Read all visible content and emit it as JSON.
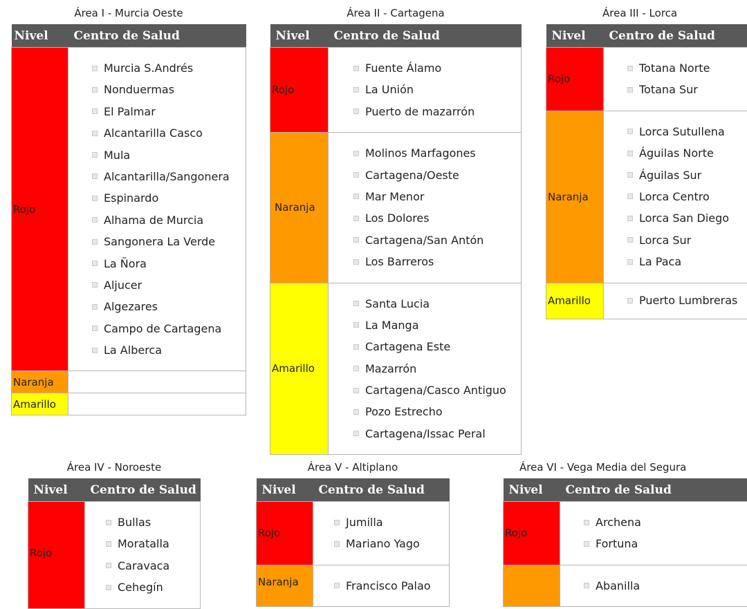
{
  "header": {
    "nivel": "Nivel",
    "centro": "Centro de Salud"
  },
  "areas": [
    {
      "title": "Área I - Murcia Oeste",
      "rows": [
        {
          "level": "Rojo",
          "color": "#ff0000",
          "centers": [
            "Murcia S.Andrés",
            "Nonduermas",
            "El Palmar",
            "Alcantarilla Casco",
            "Mula",
            "Alcantarilla/Sangonera",
            "Espinardo",
            "Alhama de Murcia",
            "Sangonera La Verde",
            "La Ñora",
            "Aljucer",
            "Algezares",
            "Campo de Cartagena",
            "La Alberca"
          ]
        },
        {
          "level": "Naranja",
          "color": "#ff9900",
          "centers": []
        },
        {
          "level": "Amarillo",
          "color": "#ffff00",
          "centers": []
        }
      ]
    },
    {
      "title": "Área II - Cartagena",
      "rows": [
        {
          "level": "Rojo",
          "color": "#ff0000",
          "centers": [
            "Fuente Álamo",
            "La Unión",
            "Puerto de mazarrón"
          ]
        },
        {
          "level": "Naranja",
          "color": "#ff9900",
          "centers": [
            "Molinos Marfagones",
            "Cartagena/Oeste",
            "Mar Menor",
            "Los Dolores",
            "Cartagena/San Antón",
            "Los Barreros"
          ]
        },
        {
          "level": "Amarillo",
          "color": "#ffff00",
          "centers": [
            "Santa Lucia",
            "La Manga",
            "Cartagena Este",
            "Mazarrón",
            "Cartagena/Casco Antiguo",
            "Pozo Estrecho",
            "Cartagena/Issac Peral"
          ]
        }
      ]
    },
    {
      "title": "Área III - Lorca",
      "rows": [
        {
          "level": "Rojo",
          "color": "#ff0000",
          "centers": [
            "Totana Norte",
            "Totana Sur"
          ]
        },
        {
          "level": "Naranja",
          "color": "#ff9900",
          "centers": [
            "Lorca Sutullena",
            "Águilas Norte",
            "Águilas Sur",
            "Lorca Centro",
            "Lorca San Diego",
            "Lorca Sur",
            "La Paca"
          ]
        },
        {
          "level": "Amarillo",
          "color": "#ffff00",
          "centers": [
            "Puerto Lumbreras"
          ]
        }
      ]
    },
    {
      "title": "Área IV - Noroeste",
      "rows": [
        {
          "level": "Rojo",
          "color": "#ff0000",
          "centers": [
            "Bullas",
            "Moratalla",
            "Caravaca",
            "Cehegín"
          ]
        }
      ]
    },
    {
      "title": "Área V - Altiplano",
      "rows": [
        {
          "level": "Rojo",
          "color": "#ff0000",
          "centers": [
            "Jumilla",
            "Mariano Yago"
          ]
        },
        {
          "level": "Naranja",
          "color": "#ff9900",
          "centers": [
            "Francisco Palao"
          ]
        }
      ]
    },
    {
      "title": "Área VI - Vega Media del Segura",
      "rows": [
        {
          "level": "Rojo",
          "color": "#ff0000",
          "centers": [
            "Archena",
            "Fortuna"
          ]
        },
        {
          "level": "",
          "color": "#ff9900",
          "centers": [
            "Abanilla"
          ]
        }
      ]
    }
  ]
}
